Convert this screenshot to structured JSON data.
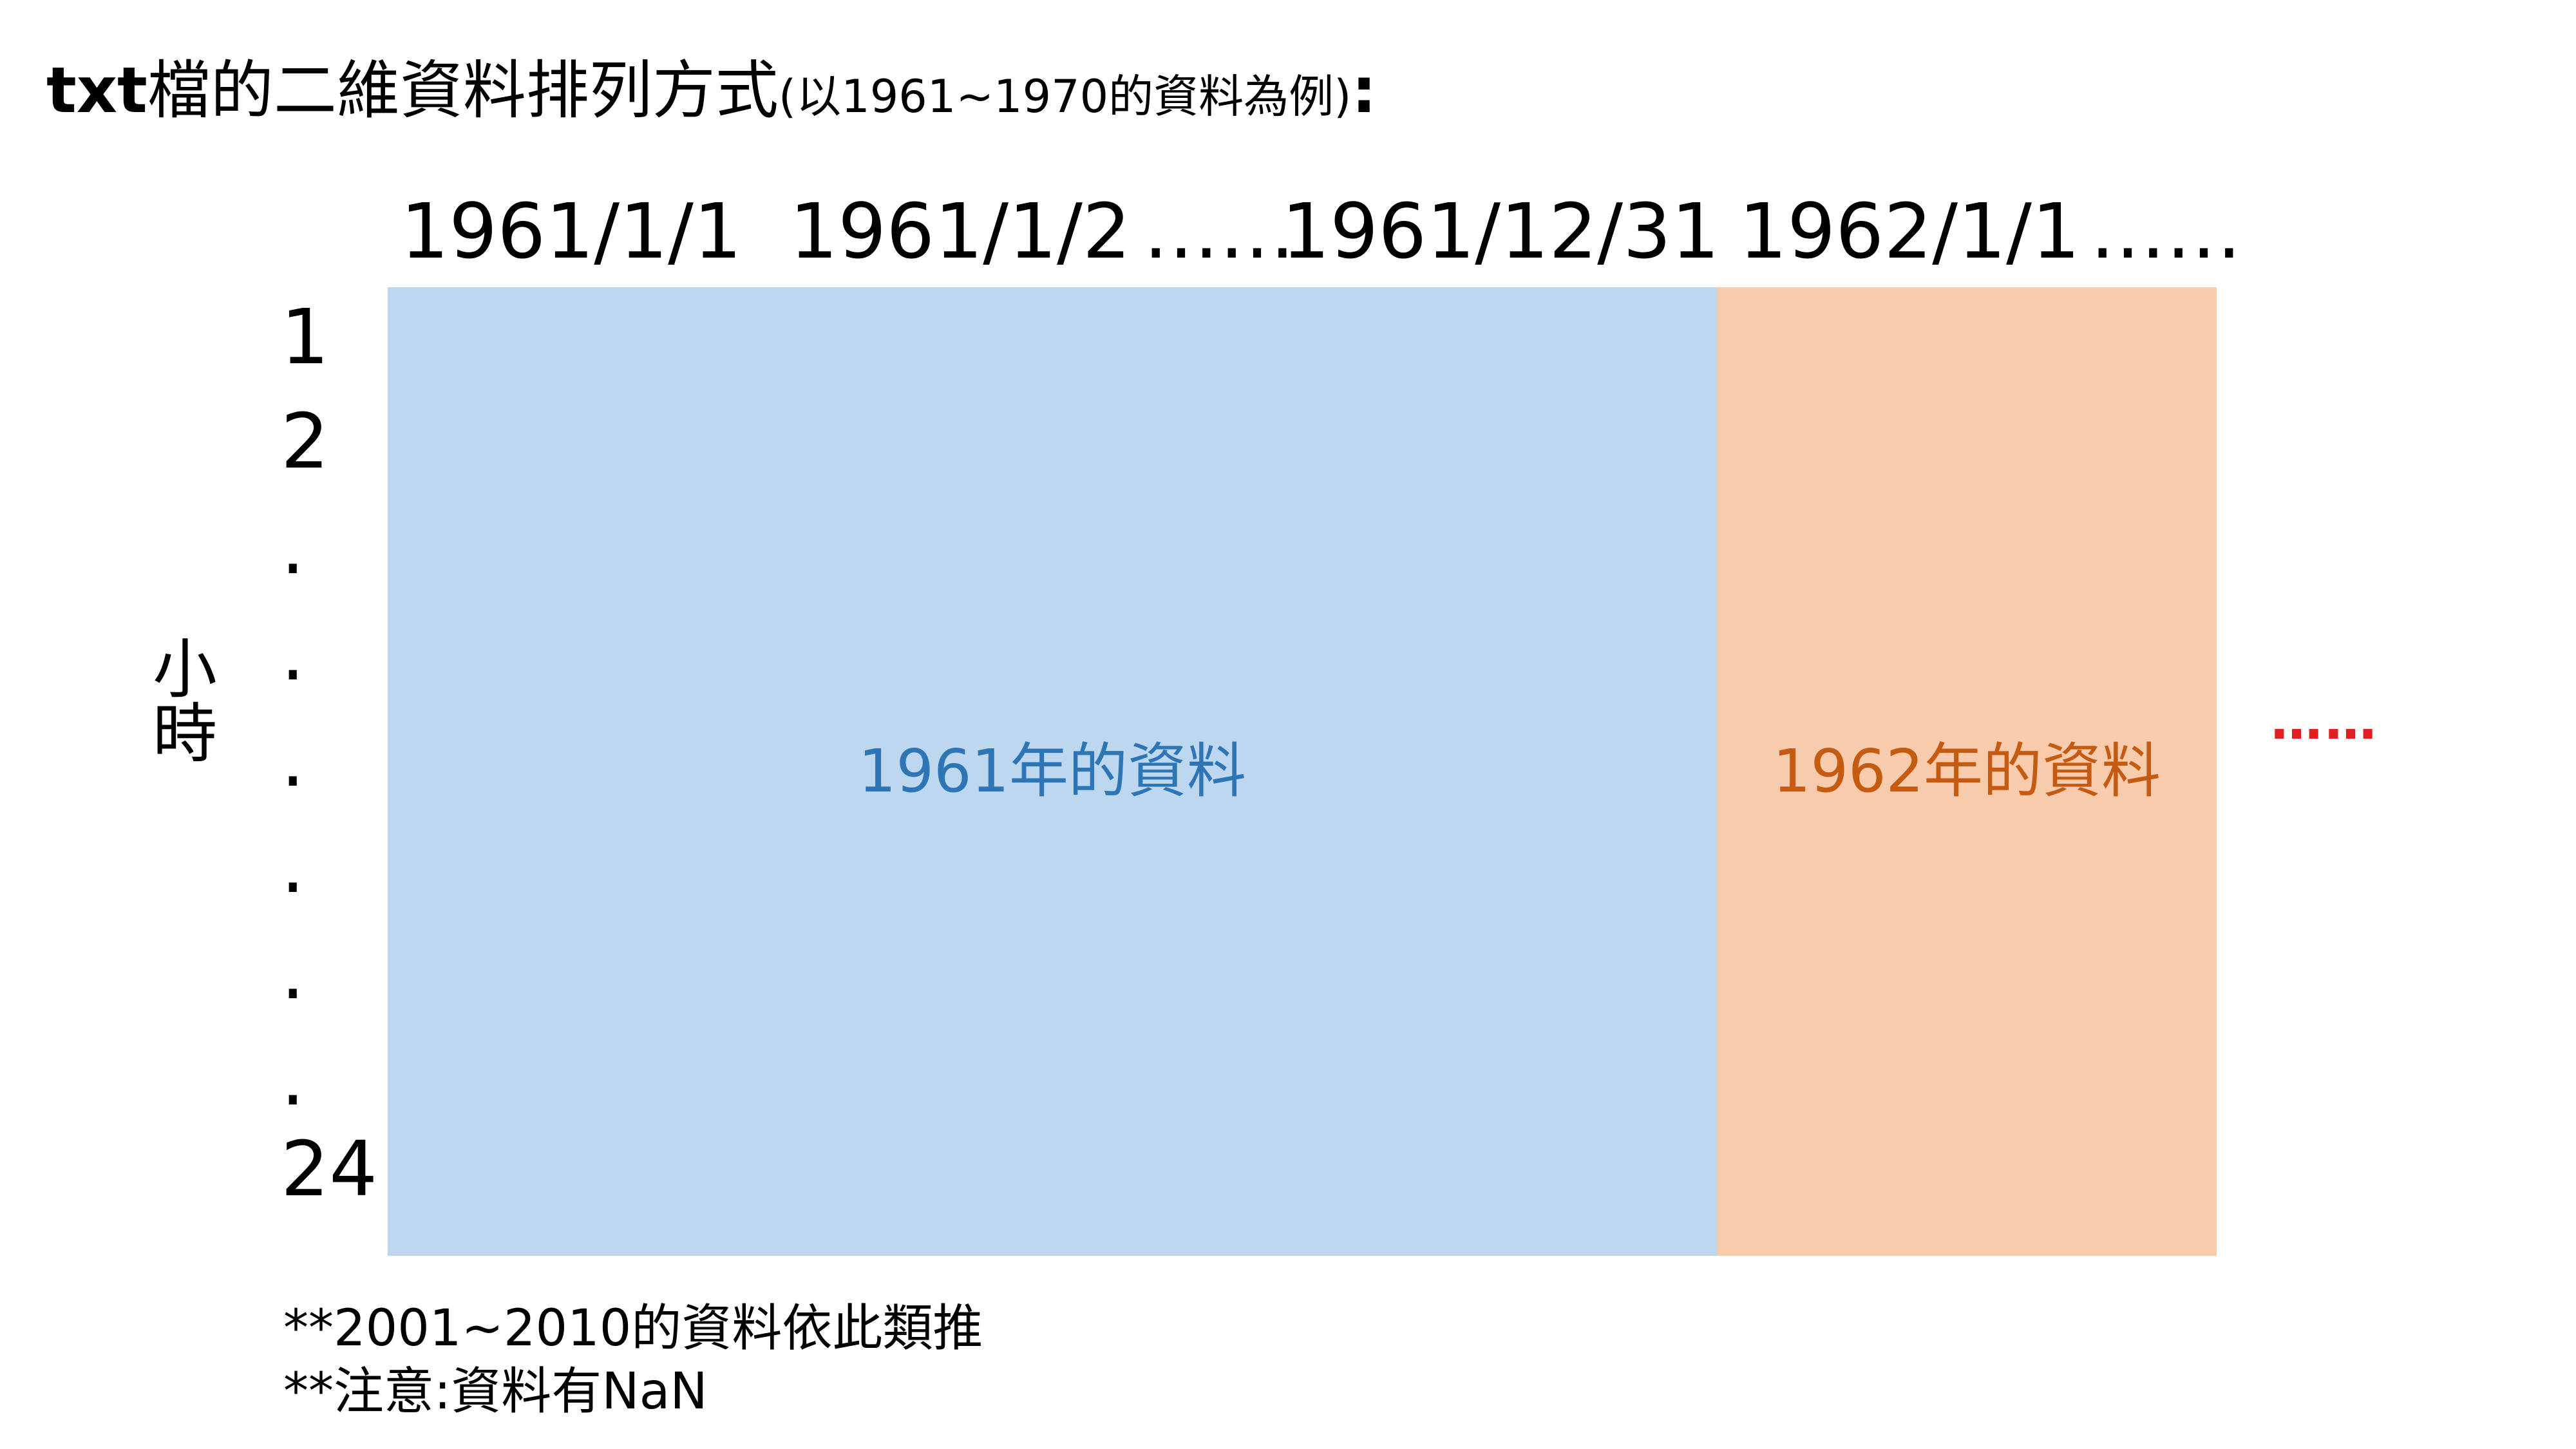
{
  "title": {
    "main_prefix": "txt",
    "main_rest": "檔的二維資料排列方式",
    "sub": "(以1961~1970的資料為例)",
    "colon": ":"
  },
  "column_labels": [
    "1961/1/1",
    "1961/1/2",
    "……",
    "1961/12/31",
    "1962/1/1",
    "……"
  ],
  "row_labels": [
    "1",
    "2",
    ".",
    ".",
    ".",
    ".",
    ".",
    ".",
    "24"
  ],
  "axis_label": "小時",
  "blocks": {
    "y1961": {
      "label": "1961年的資料",
      "fill": "#BDD7EE",
      "text_color": "#2E75B6"
    },
    "y1962": {
      "label": "1962年的資料",
      "fill": "#F8CBAD",
      "text_color": "#C55A11"
    }
  },
  "more": {
    "label": "……",
    "color": "#E02020"
  },
  "notes": [
    "**2001~2010的資料依此類推",
    "**注意:資料有NaN"
  ]
}
